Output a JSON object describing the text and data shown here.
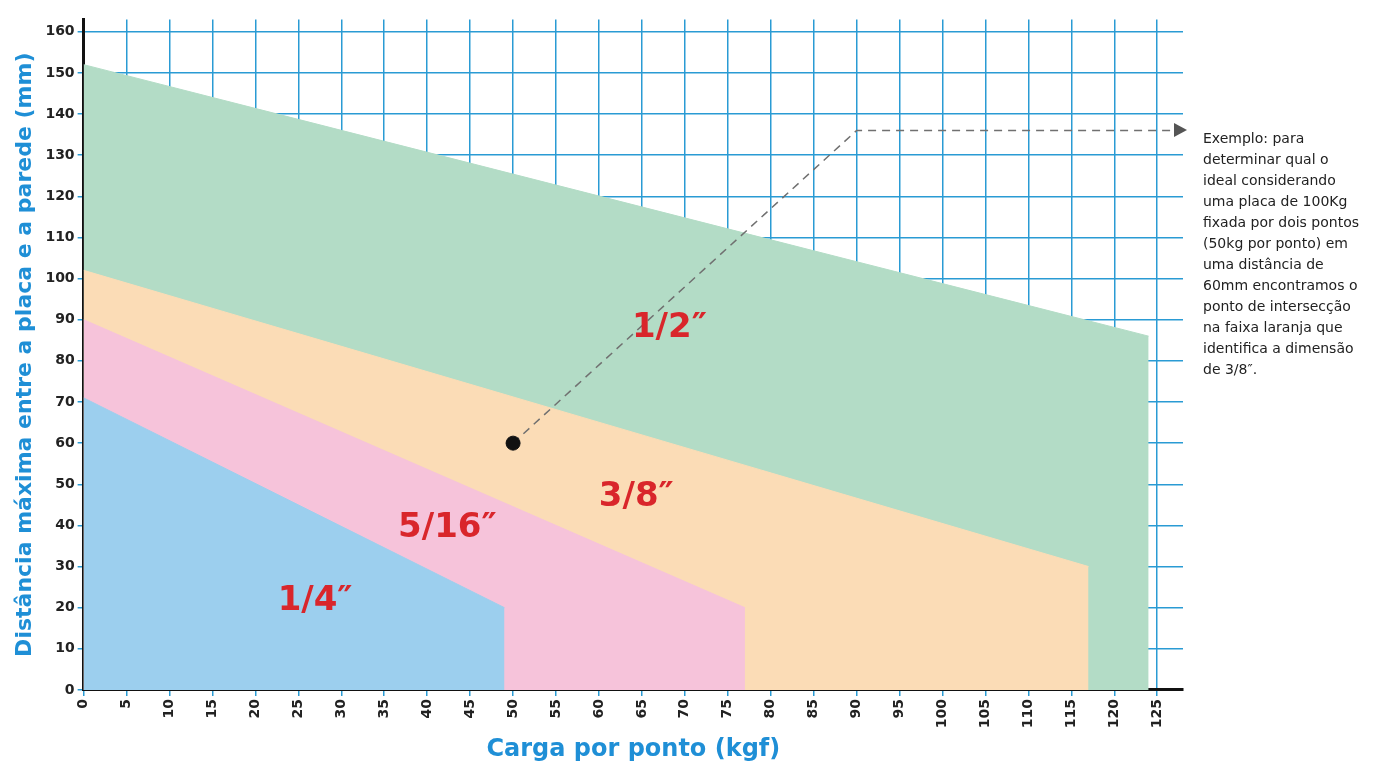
{
  "chart_data": {
    "type": "area",
    "xlabel": "Carga por ponto (kgf)",
    "ylabel": "Distância máxima entre a placa e a parede (mm)",
    "xlim": [
      0,
      128
    ],
    "xticks": [
      0,
      5,
      10,
      15,
      20,
      25,
      30,
      35,
      40,
      45,
      50,
      55,
      60,
      65,
      70,
      75,
      80,
      85,
      90,
      95,
      100,
      105,
      110,
      115,
      120,
      125
    ],
    "ylim": [
      0,
      163
    ],
    "yticks": [
      0,
      10,
      20,
      30,
      40,
      50,
      60,
      70,
      80,
      90,
      100,
      110,
      120,
      130,
      140,
      150,
      160
    ],
    "grid": true,
    "legend": false,
    "series": [
      {
        "name": "1/4″",
        "color": "#9ccfee",
        "x": [
          0,
          49
        ],
        "values": [
          71,
          20
        ]
      },
      {
        "name": "5/16″",
        "color": "#f6c3da",
        "x": [
          0,
          77
        ],
        "values": [
          90,
          20
        ]
      },
      {
        "name": "3/8″",
        "color": "#fbdcb6",
        "x": [
          0,
          117
        ],
        "values": [
          102,
          30
        ]
      },
      {
        "name": "1/2″",
        "color": "#b3dcc6",
        "x": [
          0,
          124
        ],
        "values": [
          152,
          86
        ]
      },
      {
        "type": "line",
        "color": "#707070",
        "line_style": "dashed",
        "marker": "none",
        "x": [
          50,
          90,
          127
        ],
        "values": [
          60,
          136,
          136
        ]
      },
      {
        "type": "scatter",
        "color": "#111111",
        "marker": "circle",
        "x": [
          50
        ],
        "values": [
          60
        ]
      }
    ],
    "annotations": [
      "Exemplo: para determinar qual o ideal considerando uma placa de 100Kg fixada por dois pontos (50kg por ponto) em uma distância de 60mm encontramos o ponto de intersecção na faixa laranja que identifica a dimensão de 3/8″."
    ]
  }
}
